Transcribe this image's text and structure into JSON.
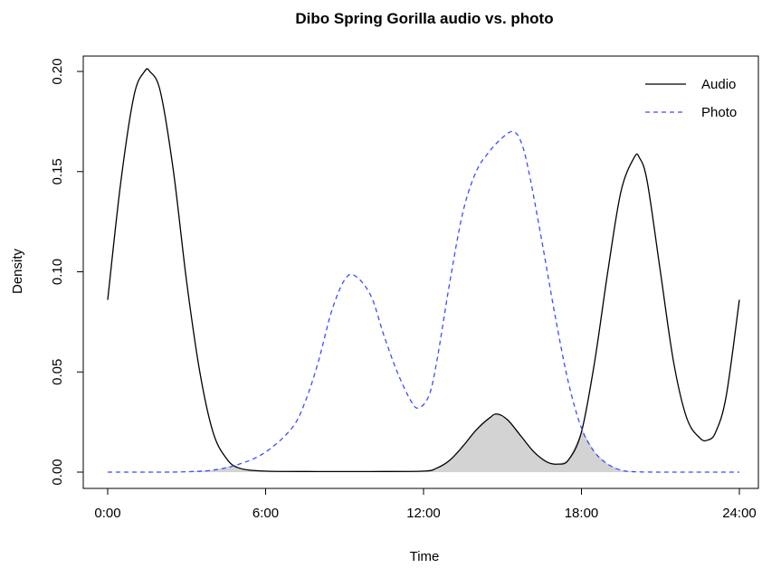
{
  "chart_data": {
    "type": "line",
    "title": "Dibo Spring Gorilla audio vs. photo",
    "xlabel": "Time",
    "ylabel": "Density",
    "xlim": [
      0,
      24
    ],
    "ylim": [
      0,
      0.2
    ],
    "x_ticks": [
      0,
      6,
      12,
      18,
      24
    ],
    "x_tick_labels": [
      "0:00",
      "6:00",
      "12:00",
      "18:00",
      "24:00"
    ],
    "y_ticks": [
      0,
      0.05,
      0.1,
      0.15,
      0.2
    ],
    "y_tick_labels": [
      "0.00",
      "0.05",
      "0.10",
      "0.15",
      "0.20"
    ],
    "legend_position": "top-right",
    "grid": false,
    "series": [
      {
        "name": "Audio",
        "style": "solid",
        "color": "#000000",
        "x": [
          0,
          0.5,
          1.0,
          1.4,
          1.6,
          2.0,
          2.5,
          3.0,
          3.5,
          4.0,
          4.5,
          5.0,
          6.0,
          8.0,
          10.0,
          12.0,
          12.5,
          13.0,
          13.5,
          14.0,
          14.5,
          14.8,
          15.2,
          15.7,
          16.2,
          16.7,
          17.1,
          17.5,
          18.0,
          18.5,
          19.0,
          19.5,
          20.0,
          20.2,
          20.5,
          21.0,
          21.5,
          22.0,
          22.5,
          22.8,
          23.1,
          23.5,
          24.0
        ],
        "y": [
          0.086,
          0.145,
          0.188,
          0.2,
          0.2,
          0.19,
          0.15,
          0.095,
          0.05,
          0.02,
          0.007,
          0.002,
          0.0005,
          0.0003,
          0.0003,
          0.0005,
          0.002,
          0.006,
          0.013,
          0.021,
          0.027,
          0.029,
          0.026,
          0.018,
          0.01,
          0.005,
          0.004,
          0.006,
          0.02,
          0.055,
          0.1,
          0.14,
          0.157,
          0.157,
          0.145,
          0.1,
          0.055,
          0.027,
          0.017,
          0.016,
          0.02,
          0.038,
          0.086
        ]
      },
      {
        "name": "Photo",
        "style": "dashed",
        "color": "#3b4cff",
        "x": [
          0,
          2.0,
          3.0,
          4.0,
          5.0,
          6.0,
          7.0,
          7.5,
          8.0,
          8.5,
          9.0,
          9.4,
          10.0,
          10.5,
          11.0,
          11.5,
          11.8,
          12.2,
          12.5,
          13.0,
          13.5,
          14.0,
          14.5,
          15.0,
          15.4,
          15.7,
          16.0,
          16.5,
          17.0,
          17.5,
          18.0,
          18.5,
          19.0,
          19.5,
          20.0,
          21.0,
          22.0,
          24.0
        ],
        "y": [
          0.0,
          0.0,
          0.0002,
          0.001,
          0.004,
          0.01,
          0.022,
          0.035,
          0.055,
          0.08,
          0.096,
          0.098,
          0.088,
          0.068,
          0.05,
          0.036,
          0.032,
          0.038,
          0.055,
          0.095,
          0.13,
          0.15,
          0.16,
          0.167,
          0.17,
          0.165,
          0.15,
          0.115,
          0.078,
          0.045,
          0.022,
          0.01,
          0.004,
          0.001,
          0.0002,
          0.0,
          0.0,
          0.0
        ]
      }
    ],
    "overlap_fill": {
      "color": "#d3d3d3",
      "description_from_series": [
        "Audio",
        "Photo"
      ]
    }
  }
}
